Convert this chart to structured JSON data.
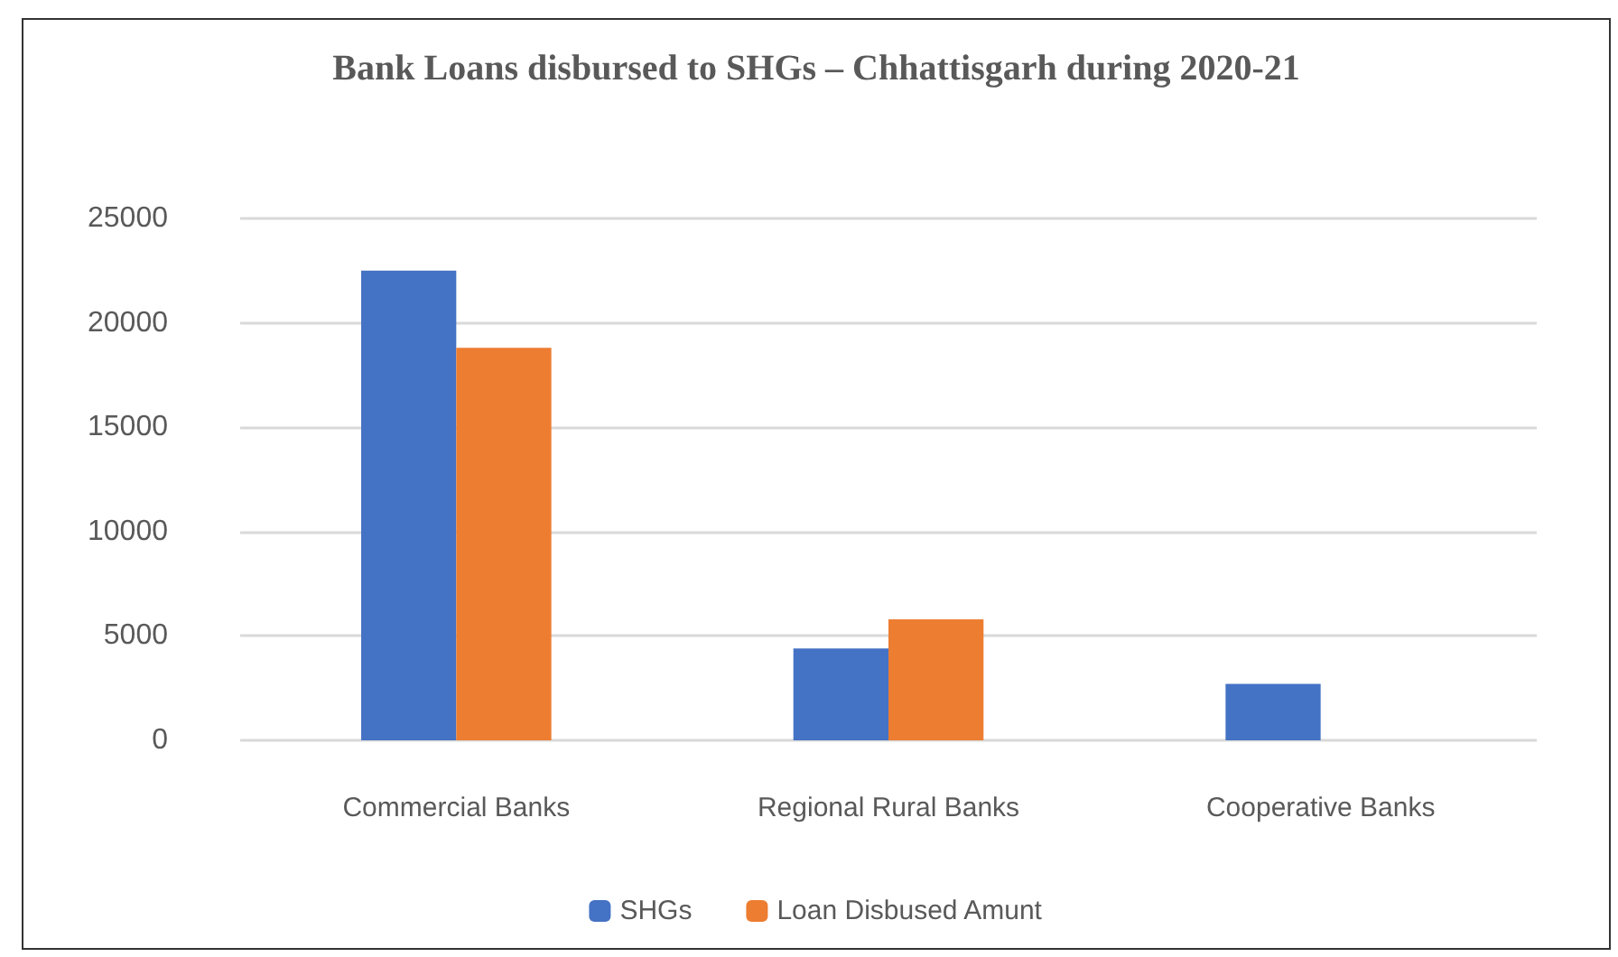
{
  "chart_data": {
    "type": "bar",
    "title": "Bank Loans disbursed to SHGs – Chhattisgarh during 2020-21",
    "categories": [
      "Commercial Banks",
      "Regional Rural Banks",
      "Cooperative Banks"
    ],
    "series": [
      {
        "name": "SHGs",
        "color": "#4472c4",
        "values": [
          22500,
          4400,
          2700
        ]
      },
      {
        "name": "Loan Disbused Amunt",
        "color": "#ed7d31",
        "values": [
          18800,
          5800,
          0
        ]
      }
    ],
    "ylim": [
      0,
      25000
    ],
    "yticks": [
      0,
      5000,
      10000,
      15000,
      20000,
      25000
    ],
    "grid": "y",
    "legend": "bottom"
  }
}
